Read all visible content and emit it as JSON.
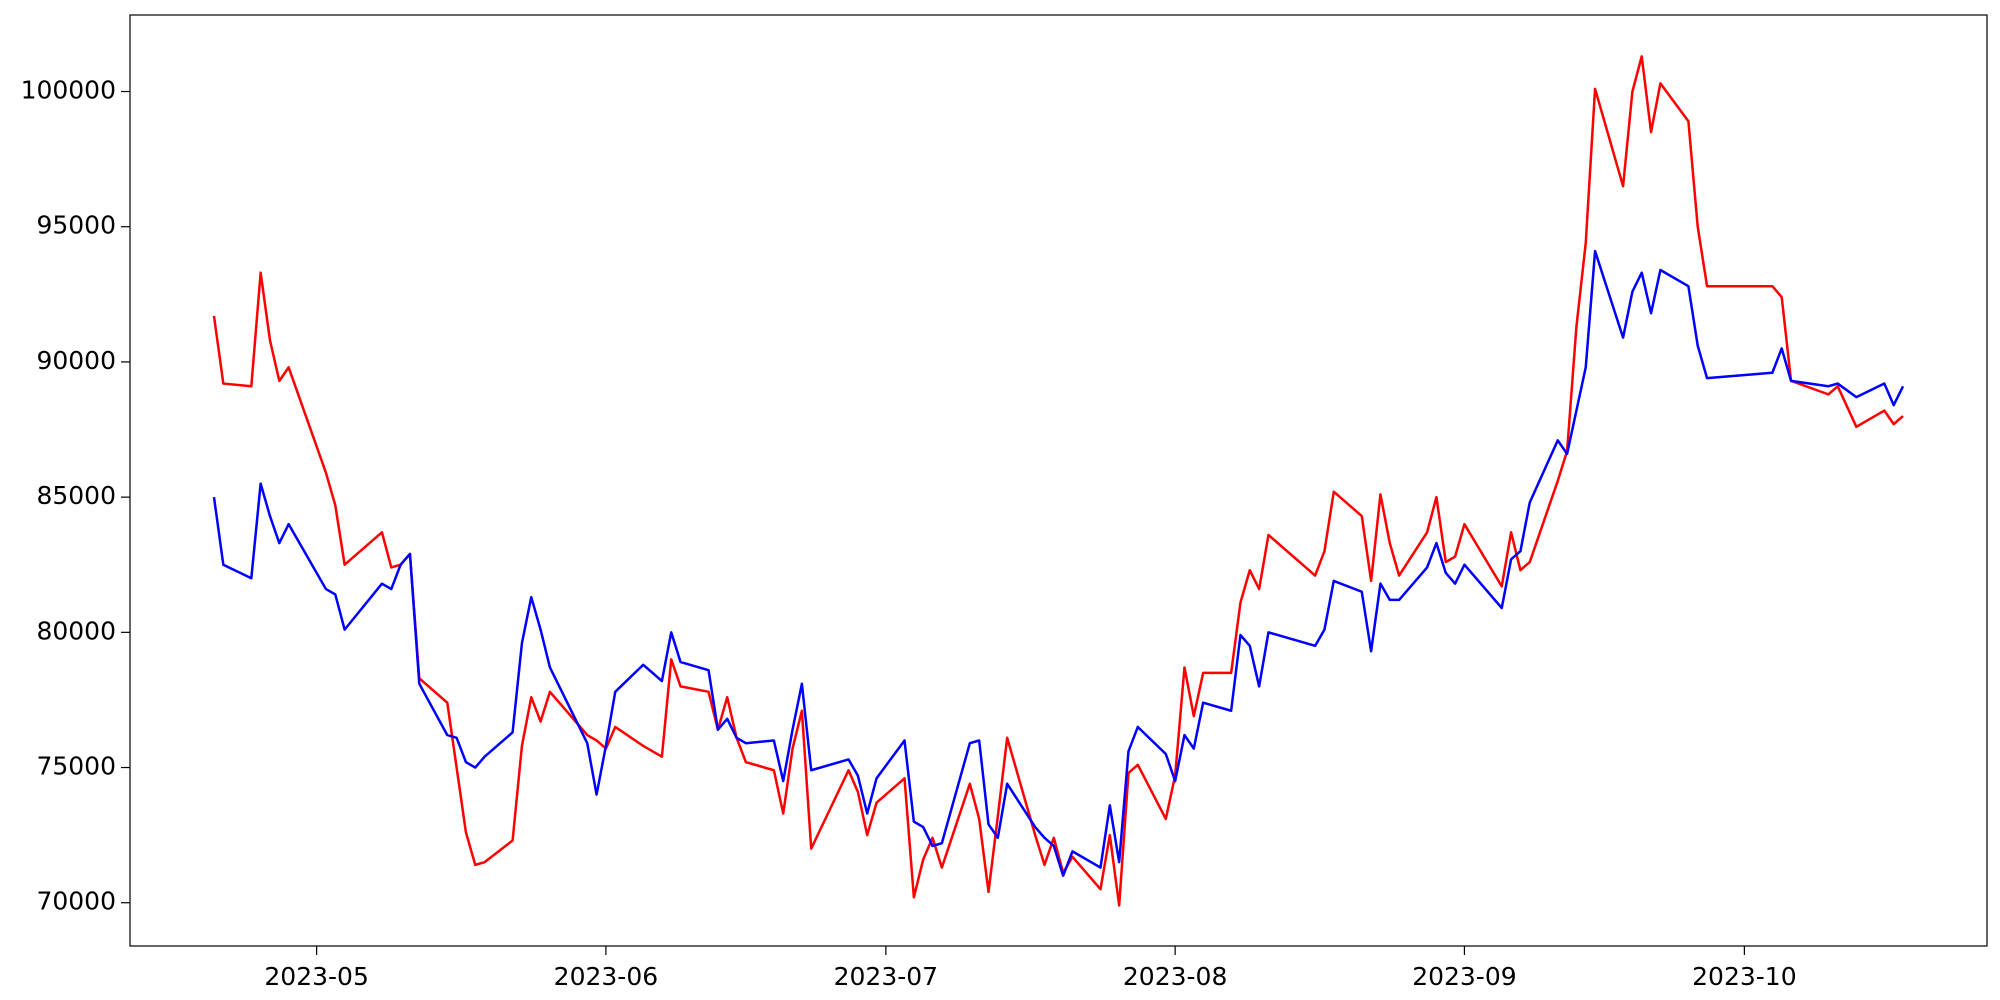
{
  "chart_data": {
    "type": "line",
    "x": [
      "2023-04-20",
      "2023-04-21",
      "2023-04-24",
      "2023-04-25",
      "2023-04-26",
      "2023-04-27",
      "2023-04-28",
      "2023-05-02",
      "2023-05-03",
      "2023-05-04",
      "2023-05-08",
      "2023-05-09",
      "2023-05-10",
      "2023-05-11",
      "2023-05-12",
      "2023-05-15",
      "2023-05-16",
      "2023-05-17",
      "2023-05-18",
      "2023-05-19",
      "2023-05-22",
      "2023-05-23",
      "2023-05-24",
      "2023-05-25",
      "2023-05-26",
      "2023-05-30",
      "2023-05-31",
      "2023-06-01",
      "2023-06-02",
      "2023-06-05",
      "2023-06-07",
      "2023-06-08",
      "2023-06-09",
      "2023-06-12",
      "2023-06-13",
      "2023-06-14",
      "2023-06-15",
      "2023-06-16",
      "2023-06-19",
      "2023-06-20",
      "2023-06-21",
      "2023-06-22",
      "2023-06-23",
      "2023-06-27",
      "2023-06-28",
      "2023-06-29",
      "2023-06-30",
      "2023-07-03",
      "2023-07-04",
      "2023-07-05",
      "2023-07-06",
      "2023-07-07",
      "2023-07-10",
      "2023-07-11",
      "2023-07-12",
      "2023-07-13",
      "2023-07-14",
      "2023-07-17",
      "2023-07-18",
      "2023-07-19",
      "2023-07-20",
      "2023-07-21",
      "2023-07-24",
      "2023-07-25",
      "2023-07-26",
      "2023-07-27",
      "2023-07-28",
      "2023-07-31",
      "2023-08-01",
      "2023-08-02",
      "2023-08-03",
      "2023-08-04",
      "2023-08-07",
      "2023-08-08",
      "2023-08-09",
      "2023-08-10",
      "2023-08-11",
      "2023-08-16",
      "2023-08-17",
      "2023-08-18",
      "2023-08-21",
      "2023-08-22",
      "2023-08-23",
      "2023-08-24",
      "2023-08-25",
      "2023-08-28",
      "2023-08-29",
      "2023-08-30",
      "2023-08-31",
      "2023-09-01",
      "2023-09-05",
      "2023-09-06",
      "2023-09-07",
      "2023-09-08",
      "2023-09-11",
      "2023-09-12",
      "2023-09-13",
      "2023-09-14",
      "2023-09-15",
      "2023-09-18",
      "2023-09-19",
      "2023-09-20",
      "2023-09-21",
      "2023-09-22",
      "2023-09-25",
      "2023-09-26",
      "2023-09-27",
      "2023-10-04",
      "2023-10-05",
      "2023-10-06",
      "2023-10-10",
      "2023-10-11",
      "2023-10-13",
      "2023-10-16",
      "2023-10-17",
      "2023-10-18"
    ],
    "series": [
      {
        "color": "#ff0000",
        "values": [
          91700,
          89200,
          89100,
          93300,
          90800,
          89300,
          89800,
          85900,
          84700,
          82500,
          83700,
          82400,
          82500,
          82900,
          78300,
          77400,
          75000,
          72600,
          71400,
          71500,
          72300,
          75800,
          77600,
          76700,
          77800,
          76200,
          76000,
          75700,
          76500,
          75800,
          75400,
          79000,
          78000,
          77800,
          76400,
          77600,
          76100,
          75200,
          74900,
          73300,
          75700,
          77100,
          72000,
          74900,
          74100,
          72500,
          73700,
          74600,
          70200,
          71600,
          72400,
          71300,
          74400,
          73100,
          70400,
          73200,
          76100,
          72500,
          71400,
          72400,
          71100,
          71700,
          70500,
          72500,
          69900,
          74800,
          75100,
          73100,
          74700,
          78700,
          76900,
          78500,
          78500,
          81100,
          82300,
          81600,
          83600,
          82100,
          83000,
          85200,
          84300,
          81900,
          85100,
          83300,
          82100,
          83700,
          85000,
          82600,
          82800,
          84000,
          81700,
          83700,
          82300,
          82600,
          85600,
          86700,
          91300,
          94400,
          100100,
          96500,
          100000,
          101300,
          98500,
          100300,
          98900,
          95000,
          92800,
          92800,
          92400,
          89300,
          88800,
          89100,
          87600,
          88200,
          87700,
          88000
        ]
      },
      {
        "color": "#0000ff",
        "values": [
          85000,
          82500,
          82000,
          85500,
          84300,
          83300,
          84000,
          81600,
          81400,
          80100,
          81800,
          81600,
          82500,
          82900,
          78100,
          76200,
          76100,
          75200,
          75000,
          75400,
          76300,
          79600,
          81300,
          80100,
          78700,
          75900,
          74000,
          75800,
          77800,
          78800,
          78200,
          80000,
          78900,
          78600,
          76400,
          76800,
          76100,
          75900,
          76000,
          74500,
          76400,
          78100,
          74900,
          75300,
          74700,
          73300,
          74600,
          76000,
          73000,
          72800,
          72100,
          72200,
          75900,
          76000,
          72900,
          72400,
          74400,
          72800,
          72400,
          72100,
          71000,
          71900,
          71300,
          73600,
          71500,
          75600,
          76500,
          75500,
          74500,
          76200,
          75700,
          77400,
          77100,
          79900,
          79500,
          78000,
          80000,
          79500,
          80100,
          81900,
          81500,
          79300,
          81800,
          81200,
          81200,
          82400,
          83300,
          82200,
          81800,
          82500,
          80900,
          82700,
          83000,
          84800,
          87100,
          86600,
          88200,
          89800,
          94100,
          90900,
          92600,
          93300,
          91800,
          93400,
          92800,
          90600,
          89400,
          89600,
          90500,
          89300,
          89100,
          89200,
          88700,
          89200,
          88400,
          89100
        ]
      }
    ],
    "xlim": [
      "2023-04-11",
      "2023-10-27"
    ],
    "xticks": [
      {
        "value": "2023-05-01",
        "label": "2023-05"
      },
      {
        "value": "2023-06-01",
        "label": "2023-06"
      },
      {
        "value": "2023-07-01",
        "label": "2023-07"
      },
      {
        "value": "2023-08-01",
        "label": "2023-08"
      },
      {
        "value": "2023-09-01",
        "label": "2023-09"
      },
      {
        "value": "2023-10-01",
        "label": "2023-10"
      }
    ],
    "ylim": [
      68400,
      102830
    ],
    "yticks": [
      70000,
      75000,
      80000,
      85000,
      90000,
      95000,
      100000
    ],
    "grid": false
  }
}
